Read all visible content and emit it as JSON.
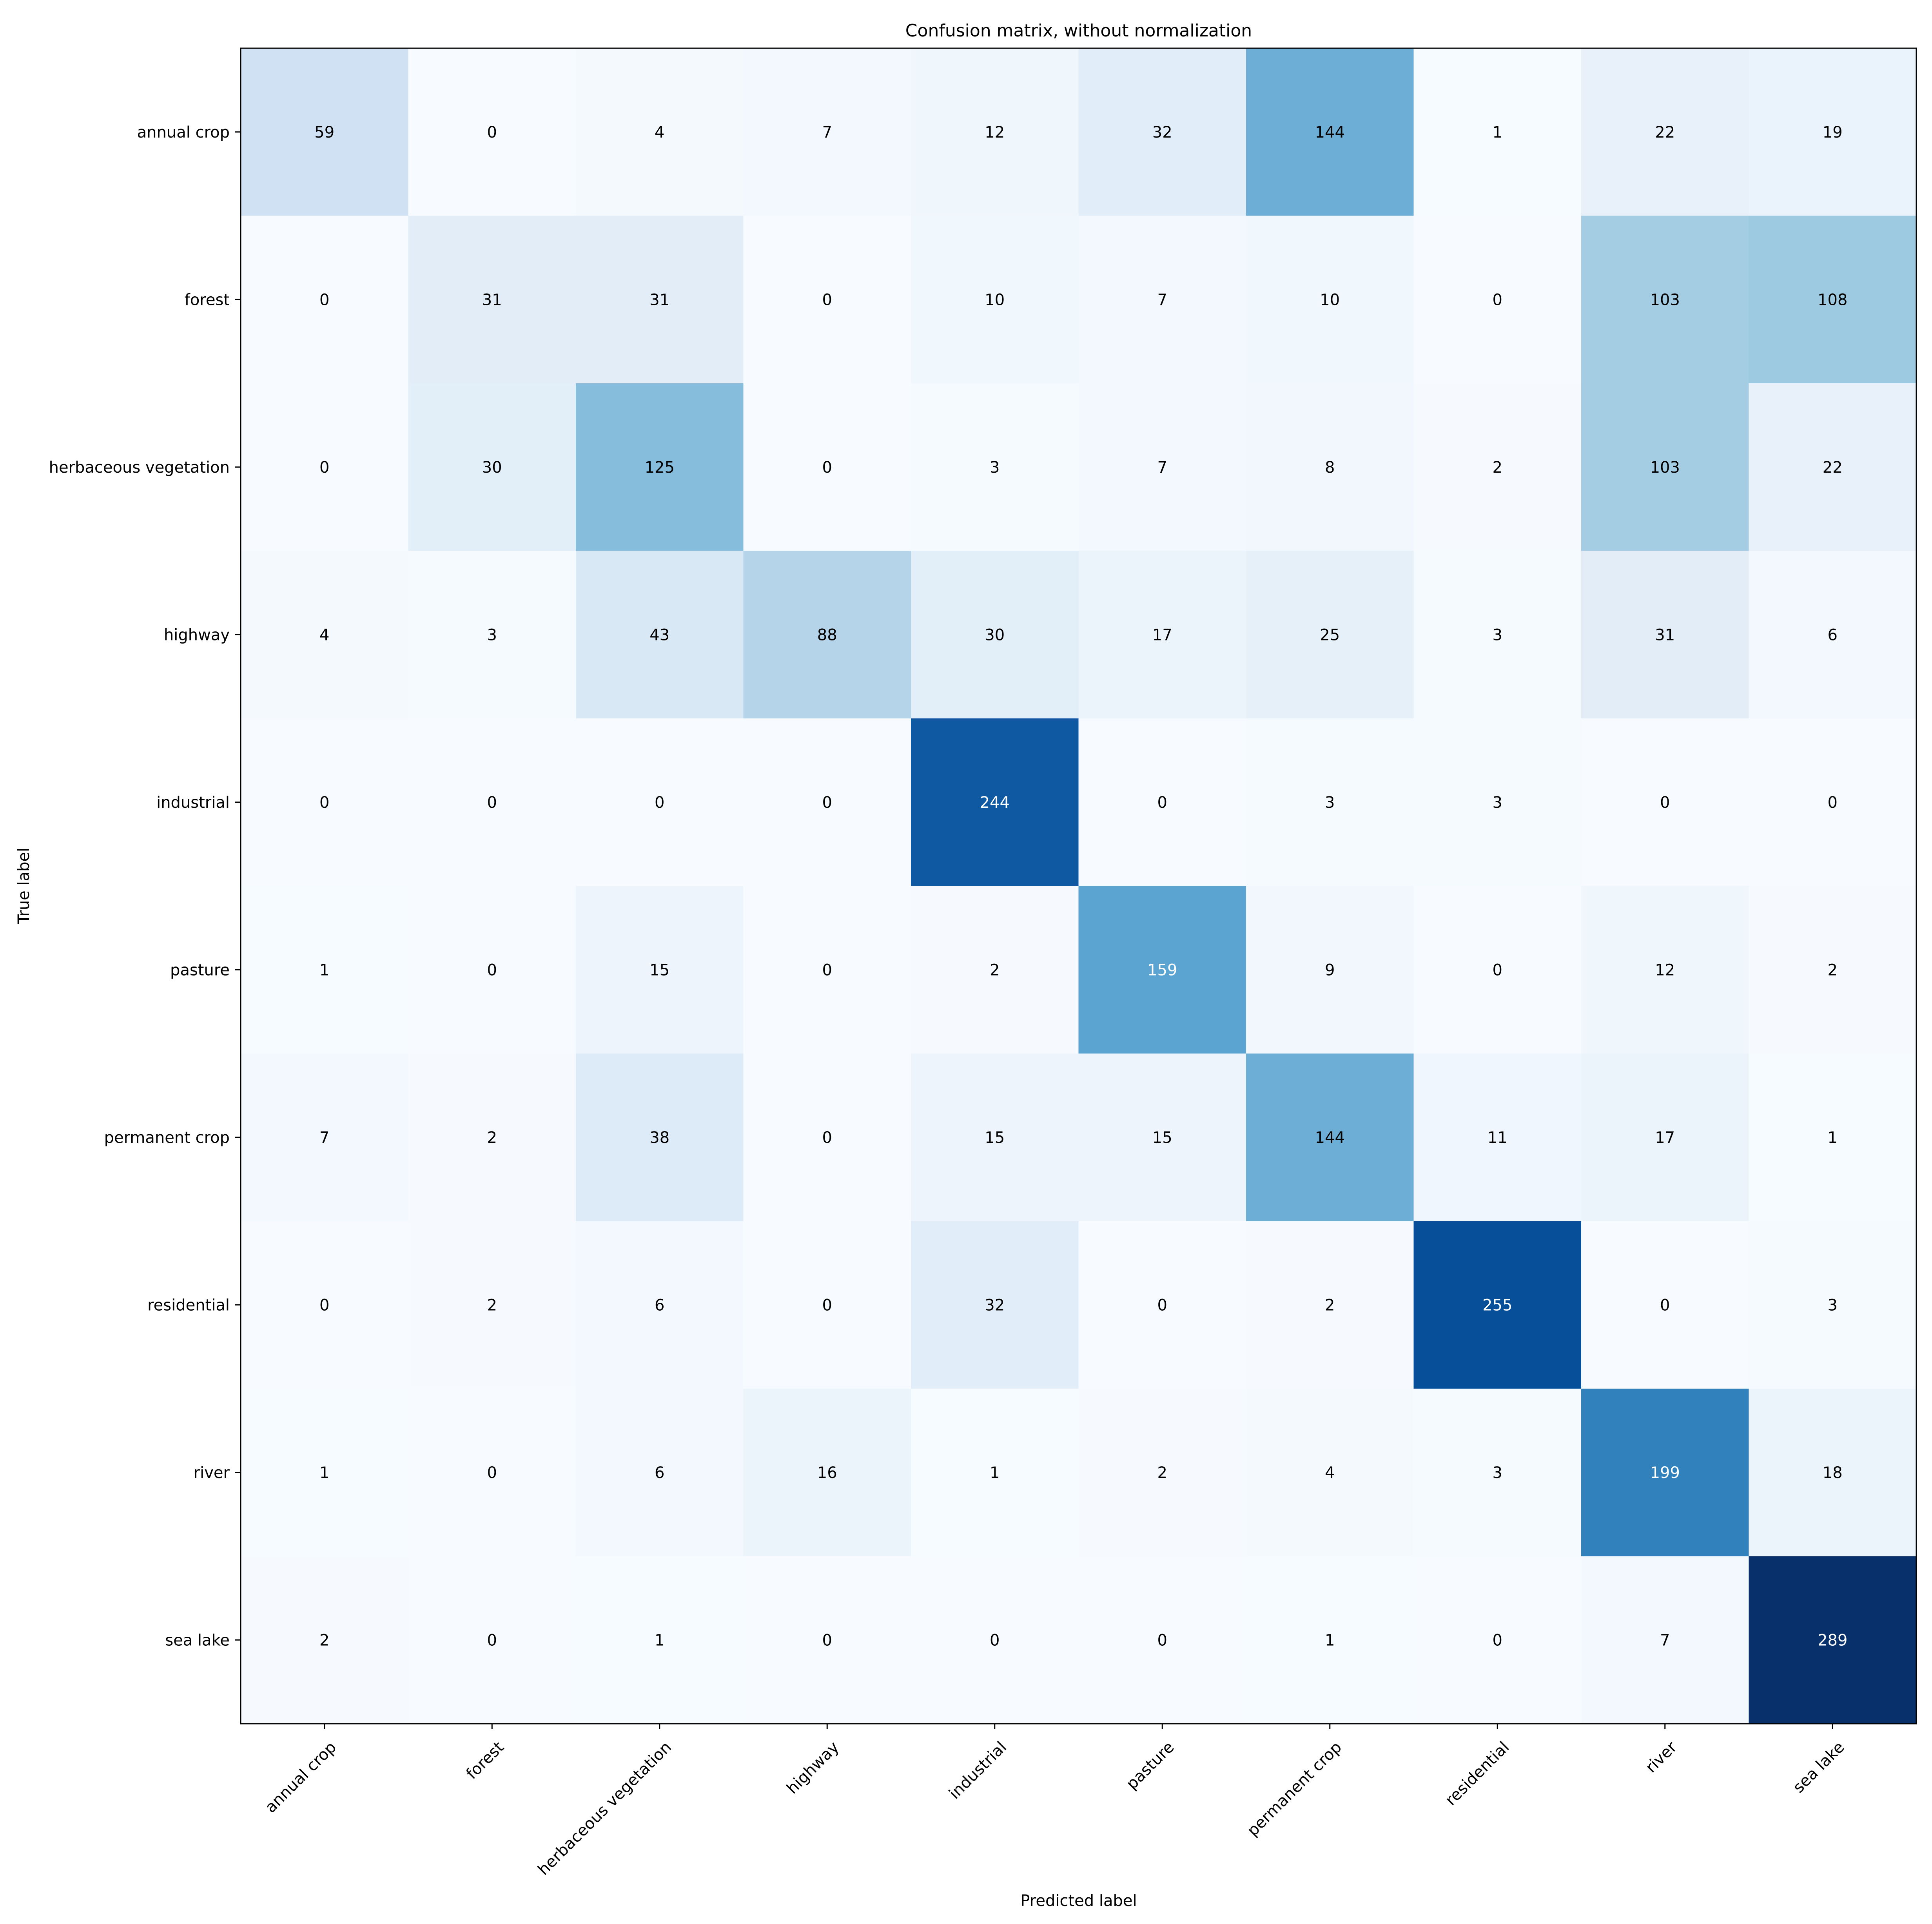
{
  "chart_data": {
    "type": "heatmap",
    "title": "Confusion matrix, without normalization",
    "xlabel": "Predicted label",
    "ylabel": "True label",
    "x_categories": [
      "annual crop",
      "forest",
      "herbaceous vegetation",
      "highway",
      "industrial",
      "pasture",
      "permanent crop",
      "residential",
      "river",
      "sea lake"
    ],
    "y_categories": [
      "annual crop",
      "forest",
      "herbaceous vegetation",
      "highway",
      "industrial",
      "pasture",
      "permanent crop",
      "residential",
      "river",
      "sea lake"
    ],
    "values": [
      [
        59,
        0,
        4,
        7,
        12,
        32,
        144,
        1,
        22,
        19
      ],
      [
        0,
        31,
        31,
        0,
        10,
        7,
        10,
        0,
        103,
        108
      ],
      [
        0,
        30,
        125,
        0,
        3,
        7,
        8,
        2,
        103,
        22
      ],
      [
        4,
        3,
        43,
        88,
        30,
        17,
        25,
        3,
        31,
        6
      ],
      [
        0,
        0,
        0,
        0,
        244,
        0,
        3,
        3,
        0,
        0
      ],
      [
        1,
        0,
        15,
        0,
        2,
        159,
        9,
        0,
        12,
        2
      ],
      [
        7,
        2,
        38,
        0,
        15,
        15,
        144,
        11,
        17,
        1
      ],
      [
        0,
        2,
        6,
        0,
        32,
        0,
        2,
        255,
        0,
        3
      ],
      [
        1,
        0,
        6,
        16,
        1,
        2,
        4,
        3,
        199,
        18
      ],
      [
        2,
        0,
        1,
        0,
        0,
        0,
        1,
        0,
        7,
        289
      ]
    ],
    "colormap": "Blues",
    "color_range": [
      0,
      289
    ],
    "text_color_light": "#ffffff",
    "text_color_dark": "#000000",
    "grid": false
  }
}
